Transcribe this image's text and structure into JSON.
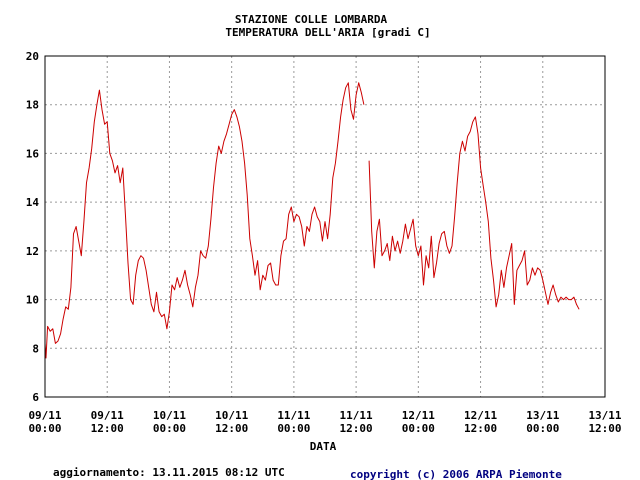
{
  "chart_data": {
    "type": "line",
    "title": "STAZIONE COLLE LOMBARDA",
    "subtitle": "TEMPERATURA DELL'ARIA [gradi C]",
    "xlabel": "DATA",
    "ylabel": "",
    "ylim": [
      6,
      20
    ],
    "xlim_hours": [
      0,
      108
    ],
    "grid": true,
    "y_ticks": [
      "6",
      "8",
      "10",
      "12",
      "14",
      "16",
      "18",
      "20"
    ],
    "x_ticks": [
      {
        "date": "09/11",
        "time": "00:00"
      },
      {
        "date": "09/11",
        "time": "12:00"
      },
      {
        "date": "10/11",
        "time": "00:00"
      },
      {
        "date": "10/11",
        "time": "12:00"
      },
      {
        "date": "11/11",
        "time": "00:00"
      },
      {
        "date": "11/11",
        "time": "12:00"
      },
      {
        "date": "12/11",
        "time": "00:00"
      },
      {
        "date": "12/11",
        "time": "12:00"
      },
      {
        "date": "13/11",
        "time": "00:00"
      },
      {
        "date": "13/11",
        "time": "12:00"
      }
    ],
    "series": [
      {
        "color": "#cc0000",
        "segments": [
          [
            [
              0,
              8.2
            ],
            [
              0.2,
              7.6
            ],
            [
              0.5,
              8.9
            ],
            [
              1,
              8.7
            ],
            [
              1.5,
              8.8
            ],
            [
              2,
              8.2
            ],
            [
              2.5,
              8.3
            ],
            [
              3,
              8.6
            ],
            [
              3.5,
              9.2
            ],
            [
              4,
              9.7
            ],
            [
              4.5,
              9.6
            ],
            [
              5,
              10.5
            ],
            [
              5.5,
              12.7
            ],
            [
              6,
              13.0
            ],
            [
              6.5,
              12.4
            ],
            [
              7,
              11.8
            ],
            [
              7.5,
              13.2
            ],
            [
              8,
              14.8
            ],
            [
              8.5,
              15.4
            ],
            [
              9,
              16.2
            ],
            [
              9.5,
              17.3
            ],
            [
              10,
              18.0
            ],
            [
              10.5,
              18.6
            ],
            [
              11,
              17.8
            ],
            [
              11.5,
              17.2
            ],
            [
              12,
              17.3
            ],
            [
              12.5,
              16.0
            ],
            [
              13,
              15.7
            ],
            [
              13.5,
              15.2
            ],
            [
              14,
              15.5
            ],
            [
              14.5,
              14.8
            ],
            [
              15,
              15.4
            ],
            [
              15.5,
              13.5
            ],
            [
              16,
              11.5
            ],
            [
              16.5,
              10.0
            ],
            [
              17,
              9.8
            ],
            [
              17.5,
              11.0
            ],
            [
              18,
              11.6
            ],
            [
              18.5,
              11.8
            ],
            [
              19,
              11.7
            ],
            [
              19.5,
              11.2
            ],
            [
              20,
              10.5
            ],
            [
              20.5,
              9.8
            ],
            [
              21,
              9.5
            ],
            [
              21.5,
              10.3
            ],
            [
              22,
              9.5
            ],
            [
              22.5,
              9.3
            ],
            [
              23,
              9.4
            ],
            [
              23.5,
              8.8
            ],
            [
              24,
              9.5
            ],
            [
              24.5,
              10.6
            ],
            [
              25,
              10.4
            ],
            [
              25.5,
              10.9
            ],
            [
              26,
              10.5
            ],
            [
              26.5,
              10.8
            ],
            [
              27,
              11.2
            ],
            [
              27.5,
              10.6
            ],
            [
              28,
              10.2
            ],
            [
              28.5,
              9.7
            ],
            [
              29,
              10.5
            ],
            [
              29.5,
              11.0
            ],
            [
              30,
              12.0
            ],
            [
              30.5,
              11.8
            ],
            [
              31,
              11.7
            ],
            [
              31.5,
              12.2
            ],
            [
              32,
              13.3
            ],
            [
              32.5,
              14.6
            ],
            [
              33,
              15.6
            ],
            [
              33.5,
              16.3
            ],
            [
              34,
              16.0
            ],
            [
              34.5,
              16.5
            ],
            [
              35,
              16.8
            ],
            [
              35.5,
              17.2
            ],
            [
              36,
              17.6
            ],
            [
              36.5,
              17.8
            ],
            [
              37,
              17.5
            ],
            [
              37.5,
              17.1
            ],
            [
              38,
              16.5
            ],
            [
              38.5,
              15.6
            ],
            [
              39,
              14.3
            ],
            [
              39.5,
              12.5
            ],
            [
              40,
              11.8
            ],
            [
              40.5,
              11.0
            ],
            [
              41,
              11.6
            ],
            [
              41.5,
              10.4
            ],
            [
              42,
              11.0
            ],
            [
              42.5,
              10.8
            ],
            [
              43,
              11.4
            ],
            [
              43.5,
              11.5
            ],
            [
              44,
              10.8
            ],
            [
              44.5,
              10.6
            ],
            [
              45,
              10.6
            ],
            [
              45.5,
              11.8
            ],
            [
              46,
              12.4
            ],
            [
              46.5,
              12.5
            ],
            [
              47,
              13.5
            ],
            [
              47.5,
              13.8
            ],
            [
              48,
              13.2
            ],
            [
              48.5,
              13.5
            ],
            [
              49,
              13.4
            ],
            [
              49.5,
              13.0
            ],
            [
              50,
              12.2
            ],
            [
              50.5,
              13.0
            ],
            [
              51,
              12.8
            ],
            [
              51.5,
              13.5
            ],
            [
              52,
              13.8
            ],
            [
              52.5,
              13.4
            ],
            [
              53,
              13.2
            ],
            [
              53.5,
              12.4
            ],
            [
              54,
              13.2
            ],
            [
              54.5,
              12.5
            ],
            [
              55,
              13.5
            ],
            [
              55.5,
              15.0
            ],
            [
              56,
              15.6
            ],
            [
              56.5,
              16.5
            ],
            [
              57,
              17.5
            ],
            [
              57.5,
              18.2
            ],
            [
              58,
              18.7
            ],
            [
              58.5,
              18.9
            ],
            [
              59,
              17.8
            ],
            [
              59.5,
              17.4
            ],
            [
              60,
              18.4
            ],
            [
              60.5,
              18.9
            ],
            [
              61,
              18.5
            ],
            [
              61.5,
              18.0
            ]
          ],
          [
            [
              62.5,
              15.7
            ],
            [
              63,
              12.8
            ],
            [
              63.5,
              11.3
            ],
            [
              64,
              12.8
            ],
            [
              64.5,
              13.3
            ],
            [
              65,
              11.8
            ],
            [
              65.5,
              12.0
            ],
            [
              66,
              12.3
            ],
            [
              66.5,
              11.6
            ],
            [
              67,
              12.6
            ],
            [
              67.5,
              12.0
            ],
            [
              68,
              12.4
            ],
            [
              68.5,
              11.9
            ],
            [
              69,
              12.4
            ],
            [
              69.5,
              13.1
            ],
            [
              70,
              12.5
            ],
            [
              70.5,
              12.9
            ],
            [
              71,
              13.3
            ],
            [
              71.5,
              12.2
            ],
            [
              72,
              11.8
            ],
            [
              72.5,
              12.2
            ],
            [
              73,
              10.6
            ],
            [
              73.5,
              11.8
            ],
            [
              74,
              11.3
            ],
            [
              74.5,
              12.6
            ],
            [
              75,
              10.9
            ],
            [
              75.5,
              11.5
            ],
            [
              76,
              12.3
            ],
            [
              76.5,
              12.7
            ],
            [
              77,
              12.8
            ],
            [
              77.5,
              12.2
            ],
            [
              78,
              11.9
            ],
            [
              78.5,
              12.2
            ],
            [
              79,
              13.4
            ],
            [
              79.5,
              14.8
            ],
            [
              80,
              16.0
            ],
            [
              80.5,
              16.5
            ],
            [
              81,
              16.1
            ],
            [
              81.5,
              16.7
            ],
            [
              82,
              16.9
            ],
            [
              82.5,
              17.3
            ],
            [
              83,
              17.5
            ],
            [
              83.5,
              16.8
            ],
            [
              84,
              15.4
            ],
            [
              84.5,
              14.7
            ],
            [
              85,
              14.0
            ],
            [
              85.5,
              13.2
            ],
            [
              86,
              11.7
            ],
            [
              86.5,
              10.8
            ],
            [
              87,
              9.7
            ],
            [
              87.5,
              10.2
            ],
            [
              88,
              11.2
            ],
            [
              88.5,
              10.5
            ],
            [
              89,
              11.3
            ],
            [
              89.5,
              11.8
            ],
            [
              90,
              12.3
            ],
            [
              90.5,
              9.8
            ],
            [
              91,
              11.2
            ],
            [
              91.5,
              11.4
            ],
            [
              92,
              11.6
            ],
            [
              92.5,
              12.0
            ],
            [
              93,
              10.6
            ],
            [
              93.5,
              10.8
            ],
            [
              94,
              11.3
            ],
            [
              94.5,
              11.0
            ],
            [
              95,
              11.3
            ],
            [
              95.5,
              11.2
            ],
            [
              96,
              10.8
            ],
            [
              96.5,
              10.3
            ],
            [
              97,
              9.8
            ],
            [
              97.5,
              10.3
            ],
            [
              98,
              10.6
            ],
            [
              98.5,
              10.2
            ],
            [
              99,
              9.9
            ],
            [
              99.5,
              10.1
            ],
            [
              100,
              10.0
            ],
            [
              100.5,
              10.1
            ],
            [
              101,
              10.0
            ],
            [
              101.5,
              10.0
            ],
            [
              102,
              10.1
            ],
            [
              102.5,
              9.8
            ],
            [
              103,
              9.6
            ]
          ]
        ]
      }
    ]
  },
  "footer": {
    "update": "aggiornamento: 13.11.2015 08:12 UTC",
    "copyright": "copyright (c) 2006 ARPA Piemonte"
  }
}
